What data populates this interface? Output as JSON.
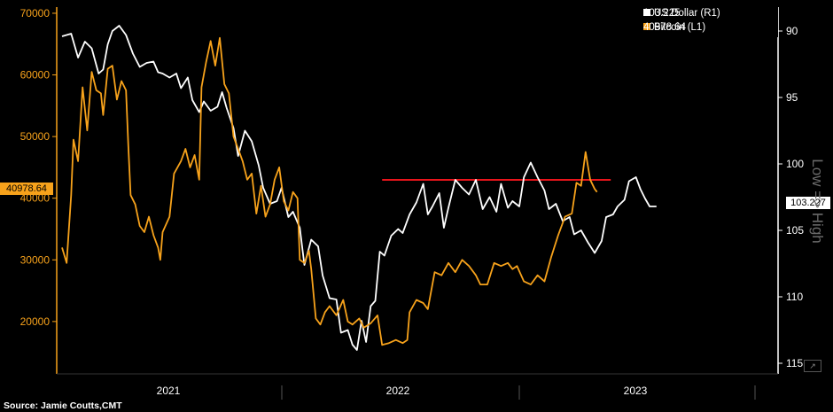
{
  "source": "Source: Jamie Coutts,CMT",
  "right_axis_title": "Low => High",
  "chart_data": {
    "type": "line",
    "left_axis": {
      "ticks": [
        20000,
        30000,
        40000,
        50000,
        60000,
        70000
      ],
      "lim": [
        11500,
        71000
      ]
    },
    "right_axis": {
      "ticks": [
        90,
        95,
        100,
        105,
        110,
        115
      ],
      "lim": [
        115.8,
        88.2
      ],
      "inverted": true
    },
    "x_axis": {
      "labels": [
        "2021",
        "2022",
        "2023"
      ]
    },
    "grid": false,
    "legend_position": "top-right",
    "series": [
      {
        "name": "US Dollar (R1)",
        "last": "103.225",
        "axis": "right",
        "color": "#ffffff",
        "values": [
          [
            0,
            90.4
          ],
          [
            0.02,
            90.2
          ],
          [
            0.035,
            92.0
          ],
          [
            0.05,
            90.8
          ],
          [
            0.065,
            91.3
          ],
          [
            0.08,
            93.2
          ],
          [
            0.09,
            92.9
          ],
          [
            0.1,
            91.0
          ],
          [
            0.11,
            90.0
          ],
          [
            0.125,
            89.6
          ],
          [
            0.14,
            90.3
          ],
          [
            0.155,
            91.7
          ],
          [
            0.17,
            92.7
          ],
          [
            0.185,
            92.4
          ],
          [
            0.2,
            92.3
          ],
          [
            0.21,
            93.1
          ],
          [
            0.22,
            93.2
          ],
          [
            0.235,
            93.5
          ],
          [
            0.25,
            93.2
          ],
          [
            0.26,
            94.3
          ],
          [
            0.275,
            93.5
          ],
          [
            0.285,
            95.2
          ],
          [
            0.3,
            96.1
          ],
          [
            0.31,
            95.3
          ],
          [
            0.325,
            96.0
          ],
          [
            0.34,
            95.7
          ],
          [
            0.35,
            94.6
          ],
          [
            0.36,
            95.8
          ],
          [
            0.375,
            97.3
          ],
          [
            0.385,
            99.4
          ],
          [
            0.4,
            97.5
          ],
          [
            0.415,
            98.3
          ],
          [
            0.43,
            100.1
          ],
          [
            0.44,
            101.8
          ],
          [
            0.455,
            103.0
          ],
          [
            0.47,
            102.8
          ],
          [
            0.48,
            101.8
          ],
          [
            0.495,
            104.0
          ],
          [
            0.505,
            103.6
          ],
          [
            0.52,
            104.8
          ],
          [
            0.53,
            107.6
          ],
          [
            0.545,
            105.7
          ],
          [
            0.56,
            106.2
          ],
          [
            0.57,
            108.4
          ],
          [
            0.585,
            110.1
          ],
          [
            0.6,
            110.2
          ],
          [
            0.61,
            112.7
          ],
          [
            0.625,
            112.5
          ],
          [
            0.635,
            113.6
          ],
          [
            0.645,
            114.0
          ],
          [
            0.655,
            111.8
          ],
          [
            0.665,
            113.4
          ],
          [
            0.675,
            110.7
          ],
          [
            0.685,
            110.3
          ],
          [
            0.695,
            106.6
          ],
          [
            0.705,
            106.9
          ],
          [
            0.72,
            105.4
          ],
          [
            0.735,
            104.9
          ],
          [
            0.745,
            105.2
          ],
          [
            0.76,
            103.8
          ],
          [
            0.775,
            102.9
          ],
          [
            0.79,
            101.5
          ],
          [
            0.8,
            103.8
          ],
          [
            0.81,
            103.2
          ],
          [
            0.825,
            102.2
          ],
          [
            0.835,
            104.8
          ],
          [
            0.845,
            103.3
          ],
          [
            0.86,
            101.2
          ],
          [
            0.875,
            101.8
          ],
          [
            0.89,
            102.3
          ],
          [
            0.905,
            101.2
          ],
          [
            0.92,
            103.4
          ],
          [
            0.935,
            102.5
          ],
          [
            0.95,
            103.6
          ],
          [
            0.96,
            101.5
          ],
          [
            0.975,
            103.3
          ],
          [
            0.985,
            102.8
          ],
          [
            1,
            103.2
          ],
          [
            1.01,
            101.0
          ],
          [
            1.025,
            99.9
          ],
          [
            1.04,
            101.0
          ],
          [
            1.055,
            102.0
          ],
          [
            1.065,
            103.4
          ],
          [
            1.08,
            103.0
          ],
          [
            1.095,
            104.3
          ],
          [
            1.11,
            104.0
          ],
          [
            1.12,
            105.3
          ],
          [
            1.135,
            105.0
          ],
          [
            1.15,
            105.9
          ],
          [
            1.165,
            106.7
          ],
          [
            1.18,
            105.8
          ],
          [
            1.19,
            104.0
          ],
          [
            1.205,
            103.8
          ],
          [
            1.215,
            103.2
          ],
          [
            1.23,
            102.7
          ],
          [
            1.24,
            101.3
          ],
          [
            1.255,
            101.0
          ],
          [
            1.265,
            101.9
          ],
          [
            1.275,
            102.6
          ],
          [
            1.285,
            103.2
          ],
          [
            1.3,
            103.2
          ]
        ]
      },
      {
        "name": "Bitcoin (L1)",
        "last": "40978.64",
        "axis": "left",
        "color": "#f7a21b",
        "values": [
          [
            0,
            32000
          ],
          [
            0.01,
            29500
          ],
          [
            0.02,
            40500
          ],
          [
            0.025,
            49500
          ],
          [
            0.035,
            46000
          ],
          [
            0.045,
            58000
          ],
          [
            0.055,
            51000
          ],
          [
            0.065,
            60500
          ],
          [
            0.075,
            57500
          ],
          [
            0.085,
            57000
          ],
          [
            0.09,
            53500
          ],
          [
            0.1,
            61000
          ],
          [
            0.11,
            61500
          ],
          [
            0.12,
            56000
          ],
          [
            0.13,
            59000
          ],
          [
            0.14,
            57500
          ],
          [
            0.145,
            48500
          ],
          [
            0.15,
            40500
          ],
          [
            0.16,
            39000
          ],
          [
            0.17,
            35500
          ],
          [
            0.18,
            34500
          ],
          [
            0.19,
            37000
          ],
          [
            0.2,
            34000
          ],
          [
            0.21,
            32000
          ],
          [
            0.215,
            30000
          ],
          [
            0.22,
            34500
          ],
          [
            0.235,
            37000
          ],
          [
            0.245,
            44000
          ],
          [
            0.26,
            46000
          ],
          [
            0.27,
            48000
          ],
          [
            0.28,
            45000
          ],
          [
            0.29,
            47000
          ],
          [
            0.3,
            43000
          ],
          [
            0.305,
            58000
          ],
          [
            0.315,
            62000
          ],
          [
            0.325,
            65500
          ],
          [
            0.335,
            61500
          ],
          [
            0.345,
            66000
          ],
          [
            0.355,
            58500
          ],
          [
            0.365,
            57000
          ],
          [
            0.375,
            50000
          ],
          [
            0.385,
            48000
          ],
          [
            0.395,
            46000
          ],
          [
            0.405,
            43000
          ],
          [
            0.415,
            44000
          ],
          [
            0.425,
            37500
          ],
          [
            0.435,
            42000
          ],
          [
            0.445,
            37000
          ],
          [
            0.455,
            39000
          ],
          [
            0.465,
            43000
          ],
          [
            0.475,
            45000
          ],
          [
            0.485,
            39500
          ],
          [
            0.495,
            38000
          ],
          [
            0.505,
            41000
          ],
          [
            0.515,
            40000
          ],
          [
            0.52,
            30000
          ],
          [
            0.53,
            29500
          ],
          [
            0.54,
            31500
          ],
          [
            0.545,
            28500
          ],
          [
            0.555,
            20500
          ],
          [
            0.565,
            19500
          ],
          [
            0.575,
            21500
          ],
          [
            0.585,
            22500
          ],
          [
            0.6,
            21000
          ],
          [
            0.615,
            23500
          ],
          [
            0.625,
            20000
          ],
          [
            0.635,
            19500
          ],
          [
            0.65,
            20500
          ],
          [
            0.66,
            19000
          ],
          [
            0.675,
            19700
          ],
          [
            0.69,
            21000
          ],
          [
            0.7,
            16200
          ],
          [
            0.715,
            16500
          ],
          [
            0.73,
            17000
          ],
          [
            0.745,
            16500
          ],
          [
            0.755,
            17000
          ],
          [
            0.76,
            21500
          ],
          [
            0.775,
            23500
          ],
          [
            0.79,
            23000
          ],
          [
            0.8,
            22000
          ],
          [
            0.815,
            28000
          ],
          [
            0.83,
            27500
          ],
          [
            0.845,
            29500
          ],
          [
            0.86,
            28000
          ],
          [
            0.875,
            30000
          ],
          [
            0.89,
            29000
          ],
          [
            0.905,
            27500
          ],
          [
            0.915,
            26000
          ],
          [
            0.93,
            26000
          ],
          [
            0.945,
            29500
          ],
          [
            0.96,
            29000
          ],
          [
            0.975,
            29500
          ],
          [
            0.985,
            28500
          ],
          [
            0.995,
            29000
          ],
          [
            1.01,
            26500
          ],
          [
            1.025,
            26000
          ],
          [
            1.04,
            27500
          ],
          [
            1.055,
            26500
          ],
          [
            1.07,
            30500
          ],
          [
            1.085,
            34000
          ],
          [
            1.1,
            37000
          ],
          [
            1.115,
            37500
          ],
          [
            1.125,
            42500
          ],
          [
            1.135,
            42000
          ],
          [
            1.145,
            47500
          ],
          [
            1.155,
            43000
          ],
          [
            1.165,
            41500
          ],
          [
            1.17,
            41000
          ]
        ]
      }
    ],
    "reference_line": {
      "axis": "right",
      "value": 101.2,
      "color": "#e8141b",
      "from": 0.7,
      "to": 1.2
    }
  }
}
